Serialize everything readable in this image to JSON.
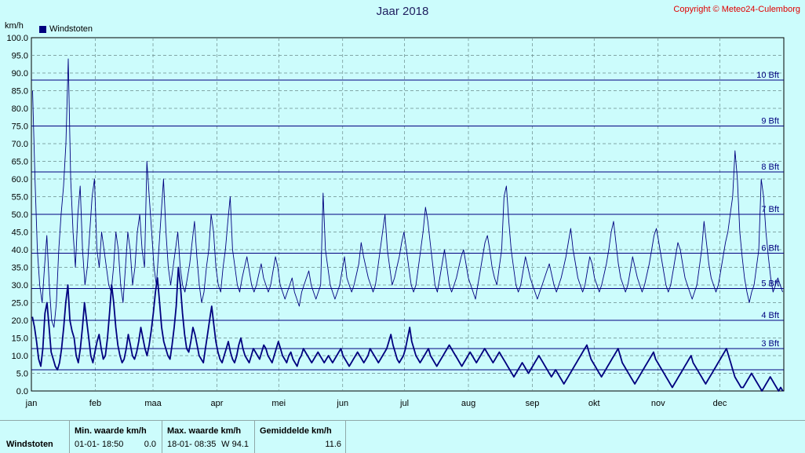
{
  "title": "Jaar 2018",
  "copyright": "Copyright © Meteo24-Culemborg",
  "y_unit": "km/h",
  "legend_label": "Windstoten",
  "chart_data": {
    "type": "line",
    "title": "Jaar 2018",
    "ylabel": "km/h",
    "ylim": [
      0,
      100
    ],
    "yticks": [
      "0.0",
      "5.0",
      "10.0",
      "15.0",
      "20.0",
      "25.0",
      "30.0",
      "35.0",
      "40.0",
      "45.0",
      "50.0",
      "55.0",
      "60.0",
      "65.0",
      "70.0",
      "75.0",
      "80.0",
      "85.0",
      "90.0",
      "95.0",
      "100.0"
    ],
    "month_labels": [
      "jan",
      "feb",
      "maa",
      "apr",
      "mei",
      "jun",
      "jul",
      "aug",
      "sep",
      "okt",
      "nov",
      "dec"
    ],
    "beaufort_lines": [
      {
        "label": "3 Bft",
        "value": 12
      },
      {
        "label": "4 Bft",
        "value": 20
      },
      {
        "label": "5 Bft",
        "value": 29
      },
      {
        "label": "6 Bft",
        "value": 39
      },
      {
        "label": "7 Bft",
        "value": 50
      },
      {
        "label": "8 Bft",
        "value": 62
      },
      {
        "label": "9 Bft",
        "value": 75
      },
      {
        "label": "10 Bft",
        "value": 88
      }
    ],
    "beaufort_line_only": [
      6
    ],
    "grid": true,
    "series": [
      {
        "name": "Windstoten",
        "color": "#00007f",
        "daily_average": [
          21,
          18,
          14,
          9,
          7,
          12,
          22,
          25,
          18,
          11,
          9,
          7,
          6,
          8,
          12,
          18,
          25,
          30,
          20,
          17,
          15,
          10,
          8,
          12,
          18,
          25,
          20,
          15,
          10,
          8,
          11,
          14,
          16,
          12,
          9,
          10,
          15,
          22,
          30,
          25,
          18,
          13,
          10,
          8,
          9,
          12,
          16,
          13,
          10,
          9,
          11,
          14,
          18,
          15,
          12,
          10,
          13,
          17,
          22,
          28,
          32,
          25,
          18,
          14,
          12,
          10,
          9,
          13,
          18,
          24,
          35,
          30,
          22,
          16,
          12,
          11,
          14,
          18,
          16,
          13,
          10,
          9,
          8,
          12,
          16,
          20,
          24,
          19,
          14,
          11,
          9,
          8,
          10,
          12,
          14,
          11,
          9,
          8,
          10,
          13,
          15,
          12,
          10,
          9,
          8,
          10,
          12,
          11,
          10,
          9,
          11,
          13,
          12,
          10,
          9,
          8,
          10,
          12,
          14,
          12,
          10,
          9,
          8,
          10,
          11,
          9,
          8,
          7,
          9,
          10,
          12,
          11,
          10,
          9,
          8,
          9,
          10,
          11,
          10,
          9,
          8,
          9,
          10,
          9,
          8,
          9,
          10,
          11,
          12,
          10,
          9,
          8,
          7,
          8,
          9,
          10,
          11,
          10,
          9,
          8,
          9,
          10,
          12,
          11,
          10,
          9,
          8,
          9,
          10,
          11,
          12,
          14,
          16,
          13,
          11,
          9,
          8,
          9,
          10,
          12,
          15,
          18,
          14,
          12,
          10,
          9,
          8,
          9,
          10,
          11,
          12,
          10,
          9,
          8,
          7,
          8,
          9,
          10,
          11,
          12,
          13,
          12,
          11,
          10,
          9,
          8,
          7,
          8,
          9,
          10,
          11,
          10,
          9,
          8,
          9,
          10,
          11,
          12,
          11,
          10,
          9,
          8,
          9,
          10,
          11,
          10,
          9,
          8,
          7,
          6,
          5,
          4,
          5,
          6,
          7,
          8,
          7,
          6,
          5,
          6,
          7,
          8,
          9,
          10,
          9,
          8,
          7,
          6,
          5,
          4,
          5,
          6,
          5,
          4,
          3,
          2,
          3,
          4,
          5,
          6,
          7,
          8,
          9,
          10,
          11,
          12,
          13,
          11,
          9,
          8,
          7,
          6,
          5,
          4,
          5,
          6,
          7,
          8,
          9,
          10,
          11,
          12,
          10,
          8,
          7,
          6,
          5,
          4,
          3,
          2,
          3,
          4,
          5,
          6,
          7,
          8,
          9,
          10,
          11,
          9,
          8,
          7,
          6,
          5,
          4,
          3,
          2,
          1,
          2,
          3,
          4,
          5,
          6,
          7,
          8,
          9,
          10,
          8,
          7,
          6,
          5,
          4,
          3,
          2,
          3,
          4,
          5,
          6,
          7,
          8,
          9,
          10,
          11,
          12,
          10,
          8,
          6,
          4,
          3,
          2,
          1,
          1,
          2,
          3,
          4,
          5,
          4,
          3,
          2,
          1,
          0,
          1,
          2,
          3,
          4,
          3,
          2,
          1,
          0,
          1,
          0
        ]
      },
      {
        "name": "max",
        "color": "#00007f",
        "daily": [
          85,
          60,
          40,
          30,
          25,
          35,
          44,
          30,
          20,
          18,
          25,
          40,
          50,
          58,
          70,
          94,
          60,
          45,
          35,
          50,
          58,
          40,
          30,
          35,
          45,
          55,
          60,
          40,
          35,
          45,
          40,
          35,
          30,
          28,
          35,
          45,
          40,
          30,
          25,
          35,
          45,
          40,
          30,
          35,
          45,
          50,
          40,
          35,
          65,
          55,
          45,
          35,
          30,
          40,
          50,
          60,
          45,
          35,
          30,
          35,
          40,
          45,
          35,
          30,
          28,
          32,
          36,
          42,
          48,
          38,
          30,
          25,
          28,
          35,
          40,
          50,
          45,
          35,
          30,
          28,
          35,
          40,
          48,
          55,
          40,
          35,
          30,
          28,
          32,
          35,
          38,
          34,
          30,
          28,
          30,
          33,
          36,
          32,
          30,
          28,
          30,
          34,
          38,
          35,
          30,
          28,
          26,
          28,
          30,
          32,
          28,
          26,
          24,
          28,
          30,
          32,
          34,
          30,
          28,
          26,
          28,
          30,
          56,
          40,
          35,
          30,
          28,
          26,
          28,
          30,
          34,
          38,
          32,
          30,
          28,
          30,
          33,
          36,
          42,
          38,
          35,
          32,
          30,
          28,
          30,
          35,
          40,
          45,
          50,
          40,
          35,
          30,
          32,
          35,
          38,
          42,
          45,
          40,
          35,
          30,
          28,
          30,
          35,
          40,
          45,
          52,
          48,
          42,
          36,
          30,
          28,
          32,
          36,
          40,
          35,
          30,
          28,
          30,
          32,
          35,
          38,
          40,
          36,
          32,
          30,
          28,
          26,
          30,
          34,
          38,
          42,
          44,
          40,
          35,
          32,
          30,
          35,
          40,
          55,
          58,
          48,
          40,
          35,
          30,
          28,
          30,
          34,
          38,
          35,
          32,
          30,
          28,
          26,
          28,
          30,
          32,
          34,
          36,
          33,
          30,
          28,
          30,
          32,
          35,
          38,
          42,
          46,
          40,
          36,
          32,
          30,
          28,
          30,
          34,
          38,
          36,
          32,
          30,
          28,
          30,
          33,
          36,
          40,
          45,
          48,
          42,
          36,
          32,
          30,
          28,
          30,
          34,
          38,
          35,
          32,
          30,
          28,
          30,
          33,
          36,
          40,
          44,
          46,
          42,
          38,
          34,
          30,
          28,
          30,
          34,
          38,
          42,
          40,
          36,
          32,
          30,
          28,
          26,
          28,
          30,
          35,
          40,
          48,
          42,
          36,
          32,
          30,
          28,
          30,
          34,
          38,
          42,
          45,
          50,
          55,
          68,
          60,
          45,
          38,
          32,
          28,
          25,
          28,
          30,
          35,
          40,
          60,
          55,
          45,
          38,
          32,
          28,
          30,
          32,
          30,
          28
        ]
      }
    ]
  },
  "stats": {
    "row_label": "Windstoten",
    "min_header": "Min. waarde  km/h",
    "min_time": "01-01- 18:50",
    "min_value": "0.0",
    "max_header": "Max. waarde km/h",
    "max_time": "18-01- 08:35",
    "max_value": "W 94.1",
    "avg_header": "Gemiddelde   km/h",
    "avg_value": "11.6"
  }
}
